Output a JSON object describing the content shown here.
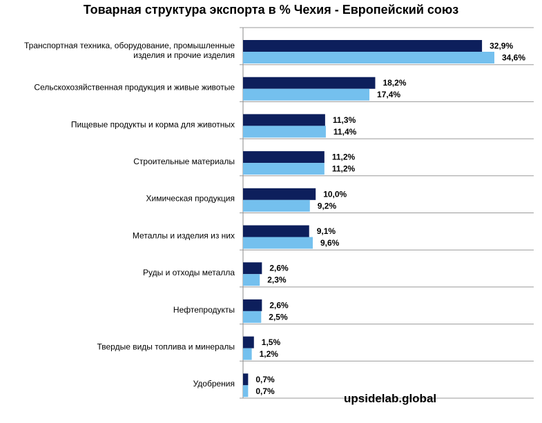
{
  "chart_data": {
    "type": "bar",
    "orientation": "horizontal",
    "title": "Товарная структура экспорта в % Чехия - Европейский союз",
    "categories": [
      [
        "Транспортная  техника, оборудование, промышленные",
        "изделия и прочие изделия"
      ],
      [
        "Сельскохозяйственная  продукция и живые животые"
      ],
      [
        "Пищевые продукты и корма для животных"
      ],
      [
        "Строительные  материалы"
      ],
      [
        "Химическая продукция"
      ],
      [
        "Металлы  и изделия из них"
      ],
      [
        "Руды и отходы металла"
      ],
      [
        "Нефтепродукты"
      ],
      [
        "Твердые  виды топлива  и минералы"
      ],
      [
        "Удобрения"
      ]
    ],
    "series": [
      {
        "color": "#0d1f5c",
        "values": [
          32.9,
          18.2,
          11.3,
          11.2,
          10.0,
          9.1,
          2.6,
          2.6,
          1.5,
          0.7
        ],
        "labels": [
          "32,9%",
          "18,2%",
          "11,3%",
          "11,2%",
          "10,0%",
          "9,1%",
          "2,6%",
          "2,6%",
          "1,5%",
          "0,7%"
        ]
      },
      {
        "color": "#74c0ee",
        "values": [
          34.6,
          17.4,
          11.4,
          11.2,
          9.2,
          9.6,
          2.3,
          2.5,
          1.2,
          0.7
        ],
        "labels": [
          "34,6%",
          "17,4%",
          "11,4%",
          "11,2%",
          "9,2%",
          "9,6%",
          "2,3%",
          "2,5%",
          "1,2%",
          "0,7%"
        ]
      }
    ],
    "grid": "horizontal separators between categories",
    "legend": "none"
  },
  "watermark": "upsidelab.global"
}
